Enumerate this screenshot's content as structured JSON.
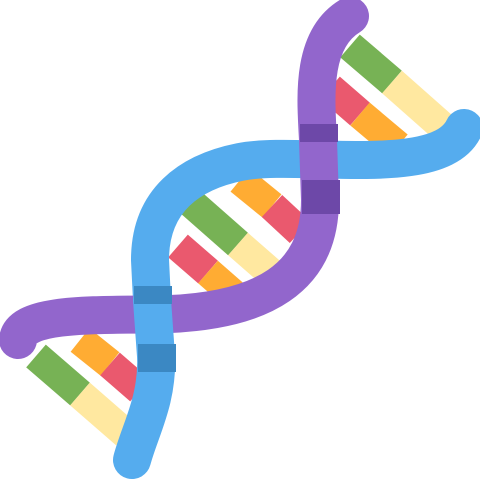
{
  "icon": {
    "name": "dna-icon",
    "colors": {
      "purple_strand": "#9266CC",
      "purple_strand_dark": "#6D48A8",
      "blue_strand": "#55ACEE",
      "blue_strand_dark": "#3B88C3",
      "green": "#77B255",
      "yellow": "#FFE8A0",
      "orange": "#FFAC33",
      "red": "#DD2E44",
      "pink": "#EA596E"
    }
  }
}
